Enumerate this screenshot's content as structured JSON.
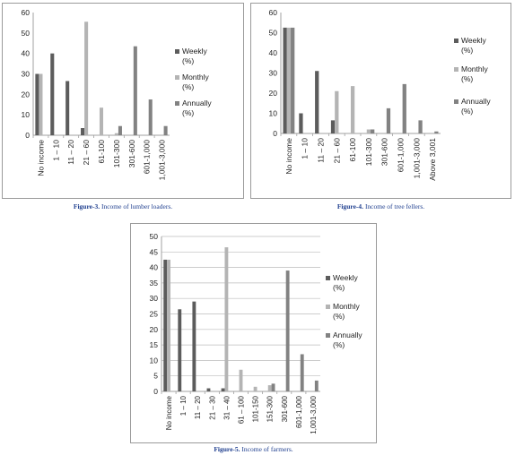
{
  "colors": {
    "weekly": "#5c5c5c",
    "monthly": "#b4b4b4",
    "annually": "#828282",
    "axis": "#a0a0a0",
    "grid": "#bcbcbc"
  },
  "chart_data": [
    {
      "type": "bar",
      "caption_label": "Figure-3.",
      "caption_text": "Income of lumber loaders.",
      "categories": [
        "No income",
        "1 – 10",
        "11 – 20",
        "21 – 60",
        "61-100",
        "101-300",
        "301-600",
        "601-1,000",
        "1,001-3,000"
      ],
      "ylim": [
        0,
        60
      ],
      "yticks": [
        "0",
        "10",
        "20",
        "30",
        "40",
        "50",
        "60"
      ],
      "grid": false,
      "legend": "right",
      "series": [
        {
          "name": "Weekly (%)",
          "label_lines": [
            "Weekly",
            "(%)"
          ],
          "values": [
            30,
            40,
            26.5,
            3.5,
            0,
            0,
            0,
            0,
            0
          ]
        },
        {
          "name": "Monthly (%)",
          "label_lines": [
            "Monthly",
            "(%)"
          ],
          "values": [
            30,
            0,
            0,
            55.5,
            13.5,
            1,
            0,
            0,
            0
          ]
        },
        {
          "name": "Annually (%)",
          "label_lines": [
            "Annually",
            "(%)"
          ],
          "values": [
            0,
            0,
            0,
            0,
            0,
            4.5,
            43.5,
            17.5,
            4.5
          ]
        }
      ]
    },
    {
      "type": "bar",
      "caption_label": "Figure-4.",
      "caption_text": "Income of tree fellers.",
      "categories": [
        "No income",
        "1 – 10",
        "11 – 20",
        "21 – 60",
        "61-100",
        "101-300",
        "301-600",
        "601-1,000",
        "1,001-3,000",
        "Above 3,001"
      ],
      "ylim": [
        0,
        60
      ],
      "yticks": [
        "0",
        "10",
        "20",
        "30",
        "40",
        "50",
        "60"
      ],
      "grid": false,
      "legend": "right",
      "series": [
        {
          "name": "Weekly (%)",
          "label_lines": [
            "Weekly",
            "(%)"
          ],
          "values": [
            52.5,
            10,
            31,
            6.5,
            0,
            0,
            0,
            0,
            0,
            0
          ]
        },
        {
          "name": "Monthly (%)",
          "label_lines": [
            "Monthly",
            "(%)"
          ],
          "values": [
            52.5,
            0,
            0,
            21,
            23.5,
            2,
            0,
            0,
            0,
            0
          ]
        },
        {
          "name": "Annually (%)",
          "label_lines": [
            "Annually",
            "(%)"
          ],
          "values": [
            52.5,
            0,
            0,
            0,
            0,
            2,
            12.5,
            24.5,
            6.5,
            1
          ]
        }
      ]
    },
    {
      "type": "bar",
      "caption_label": "Figure-5.",
      "caption_text": "Income of farmers.",
      "categories": [
        "No income",
        "1 – 10",
        "11 – 20",
        "21 – 30",
        "31 – 40",
        "61 – 100",
        "101-150",
        "151-300",
        "301-600",
        "601-1,000",
        "1,001-3,000"
      ],
      "ylim": [
        0,
        50
      ],
      "yticks": [
        "0",
        "5",
        "10",
        "15",
        "20",
        "25",
        "30",
        "35",
        "40",
        "45",
        "50"
      ],
      "grid": true,
      "legend": "right",
      "series": [
        {
          "name": "Weekly (%)",
          "label_lines": [
            "Weekly",
            "(%)"
          ],
          "values": [
            42.5,
            26.5,
            29,
            1,
            1,
            0,
            0,
            0,
            0,
            0,
            0
          ]
        },
        {
          "name": "Monthly (%)",
          "label_lines": [
            "Monthly",
            "(%)"
          ],
          "values": [
            42.5,
            0,
            0,
            0,
            46.5,
            7,
            1.5,
            2,
            0,
            0,
            0
          ]
        },
        {
          "name": "Annually (%)",
          "label_lines": [
            "Annually",
            "(%)"
          ],
          "values": [
            0,
            0,
            0,
            0,
            0,
            0,
            0,
            2.5,
            39,
            12,
            3.5
          ]
        }
      ]
    }
  ]
}
